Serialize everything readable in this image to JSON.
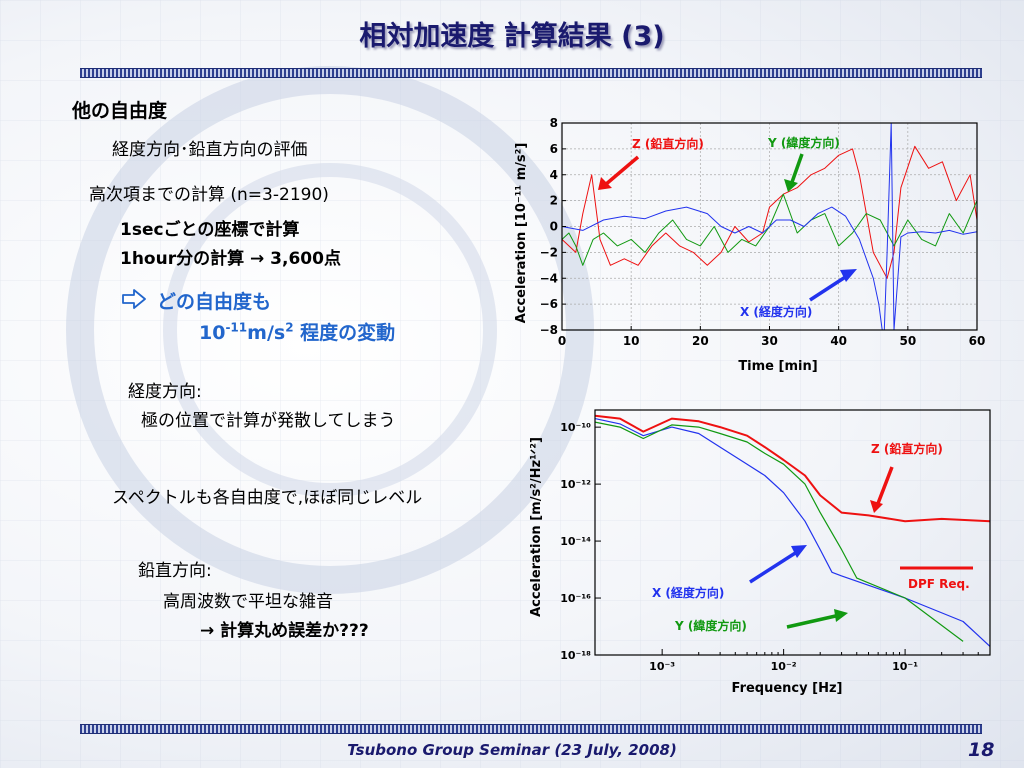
{
  "slide": {
    "title": "相対加速度 計算結果 (3)",
    "heading": "他の自由度",
    "subheading": "経度方向･鉛直方向の評価",
    "calc_range": "高次項までの計算 (n=3-2190)",
    "step_note": "1secごとの座標で計算",
    "hour_note": "1hour分の計算  → 3,600点",
    "highlight_line1": "どの自由度も",
    "highlight_base": "10",
    "highlight_exp": "-11",
    "highlight_unit": "m/s",
    "highlight_unit_exp": "2",
    "highlight_tail": " 程度の変動",
    "longitude_head": "経度方向:",
    "longitude_note": "極の位置で計算が発散してしまう",
    "spectrum_note": "スペクトルも各自由度で,ほぼ同じレベル",
    "vertical_head": "鉛直方向:",
    "vertical_note1": "高周波数で平坦な雑音",
    "vertical_note2": "→ 計算丸め誤差か???",
    "footer": "Tsubono Group Seminar (23 July, 2008)",
    "page_number": "18"
  },
  "colors": {
    "z": "#ee1111",
    "y": "#119911",
    "x": "#2233ee",
    "title": "#1a1a6e",
    "accent": "#2266cc"
  },
  "icons": {
    "bullet": "right-arrow-outline-icon"
  },
  "chart_data": [
    {
      "type": "line",
      "xlabel": "Time    [min]",
      "ylabel": "Acceleration  [10⁻¹¹  m/s²]",
      "xlim": [
        0,
        60
      ],
      "ylim": [
        -8,
        8
      ],
      "xticks": [
        "0",
        "10",
        "20",
        "30",
        "40",
        "50",
        "60"
      ],
      "yticks": [
        "−8",
        "−6",
        "−4",
        "−2",
        "0",
        "2",
        "4",
        "6",
        "8"
      ],
      "annotations": [
        "Z (鉛直方向)",
        "Y (緯度方向)",
        "X (経度方向)"
      ],
      "series": [
        {
          "name": "Z (鉛直方向)",
          "color": "#ee1111",
          "x": [
            0,
            2,
            3,
            4.3,
            5.5,
            7,
            9,
            11,
            13,
            15,
            17,
            19,
            21,
            23,
            25,
            27,
            29,
            30,
            32,
            34,
            36,
            38,
            40,
            42,
            43,
            45,
            47,
            48,
            49,
            51,
            53,
            55,
            57,
            59,
            60
          ],
          "y": [
            -1,
            -2,
            1,
            4,
            -1,
            -3,
            -2.5,
            -3,
            -1.5,
            -0.5,
            -1.5,
            -2,
            -3,
            -2,
            0,
            -1.2,
            -0.5,
            1.5,
            2.5,
            3,
            4,
            4.5,
            5.5,
            6,
            4,
            -2,
            -4,
            -2,
            3,
            6.2,
            4.5,
            5,
            2,
            4,
            0.5
          ]
        },
        {
          "name": "Y (緯度方向)",
          "color": "#119911",
          "x": [
            0,
            1,
            2,
            3,
            4.5,
            6,
            8,
            10,
            12,
            14,
            16,
            18,
            20,
            22,
            24,
            26,
            28,
            30,
            32,
            34,
            36,
            38,
            40,
            42,
            44,
            46,
            48,
            50,
            52,
            54,
            56,
            58,
            60
          ],
          "y": [
            -1,
            -0.5,
            -1.5,
            -3,
            -1,
            -0.5,
            -1.5,
            -1,
            -2,
            -0.5,
            0.5,
            -1,
            -1.5,
            0,
            -2,
            -1,
            -1.5,
            0,
            2.5,
            -0.5,
            0.5,
            1,
            -1.5,
            -0.5,
            1,
            0.5,
            -1.5,
            0.5,
            -1,
            -1.5,
            1,
            -0.5,
            2
          ]
        },
        {
          "name": "X (経度方向)",
          "color": "#2233ee",
          "x": [
            0,
            3,
            6,
            9,
            12,
            15,
            18,
            21,
            23,
            25,
            27,
            29,
            31,
            33,
            35,
            37,
            39,
            41,
            43,
            44,
            45,
            45.8,
            46.3,
            46.6,
            47,
            47.6,
            48,
            49,
            50,
            52,
            54,
            56,
            58,
            60
          ],
          "y": [
            0,
            -0.3,
            0.5,
            0.8,
            0.6,
            1.2,
            1.5,
            1,
            0,
            -0.5,
            0,
            -0.5,
            0.5,
            0.5,
            0,
            1,
            1.5,
            0.8,
            -1,
            -2.5,
            -4,
            -6,
            -8,
            -8,
            -2,
            8,
            -8,
            -0.8,
            -0.5,
            -0.4,
            -0.5,
            -0.3,
            -0.6,
            -0.4
          ]
        }
      ]
    },
    {
      "type": "line",
      "xlabel": "Frequency   [Hz]",
      "ylabel": "Acceleration [m/s²/Hz¹ᐟ²]",
      "xscale": "log",
      "yscale": "log",
      "xlim": [
        0.00028,
        0.5
      ],
      "ylim": [
        1e-18,
        4e-10
      ],
      "xticks": [
        "10⁻³",
        "10⁻²",
        "10⁻¹"
      ],
      "yticks": [
        "10⁻¹⁰",
        "10⁻¹²",
        "10⁻¹⁴",
        "10⁻¹⁶",
        "10⁻¹⁸"
      ],
      "annotations": [
        "Z (鉛直方向)",
        "DPF Req.",
        "X (経度方向)",
        "Y (緯度方向)"
      ],
      "series": [
        {
          "name": "Z (鉛直方向)",
          "color": "#ee1111",
          "x": [
            0.00028,
            0.00045,
            0.0007,
            0.0012,
            0.002,
            0.003,
            0.005,
            0.007,
            0.01,
            0.015,
            0.02,
            0.03,
            0.05,
            0.1,
            0.2,
            0.5
          ],
          "y": [
            2.5e-10,
            2e-10,
            7e-11,
            2e-10,
            1.6e-10,
            1e-10,
            5e-11,
            2e-11,
            7e-12,
            2e-12,
            4e-13,
            1e-13,
            8e-14,
            5e-14,
            6e-14,
            5e-14
          ]
        },
        {
          "name": "Y (緯度方向)",
          "color": "#119911",
          "x": [
            0.00028,
            0.00045,
            0.0007,
            0.0012,
            0.002,
            0.003,
            0.005,
            0.007,
            0.01,
            0.015,
            0.02,
            0.03,
            0.04,
            0.1,
            0.3
          ],
          "y": [
            1.5e-10,
            1e-10,
            4e-11,
            1.2e-10,
            1e-10,
            6e-11,
            3e-11,
            1.2e-11,
            5e-12,
            1e-12,
            1e-13,
            5e-15,
            5e-16,
            1e-16,
            3e-18
          ]
        },
        {
          "name": "X (経度方向)",
          "color": "#2233ee",
          "x": [
            0.00028,
            0.00045,
            0.0007,
            0.0012,
            0.002,
            0.003,
            0.005,
            0.007,
            0.01,
            0.015,
            0.02,
            0.025,
            0.03,
            0.1,
            0.3,
            0.5
          ],
          "y": [
            2e-10,
            1.3e-10,
            5e-11,
            1e-10,
            6e-11,
            2e-11,
            5e-12,
            2e-12,
            5e-13,
            5e-14,
            5e-15,
            8e-16,
            6e-16,
            1e-16,
            1.5e-17,
            2e-18
          ]
        }
      ]
    }
  ]
}
